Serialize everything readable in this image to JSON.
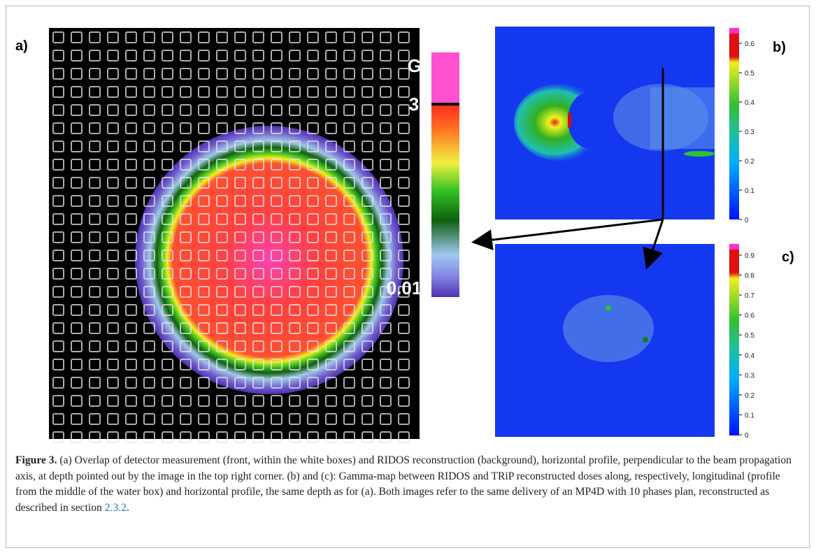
{
  "figure": {
    "panels": [
      {
        "label": "a)",
        "colorbar": {
          "unit": "Gy",
          "max_label": 3,
          "min_label": 0.01
        }
      },
      {
        "label": "b)",
        "colorbar_ticks": [
          0,
          0.1,
          0.2,
          0.3,
          0.4,
          0.5,
          0.6
        ]
      },
      {
        "label": "c)",
        "colorbar_ticks": [
          0,
          0.1,
          0.2,
          0.3,
          0.4,
          0.5,
          0.6,
          0.7,
          0.8,
          0.9
        ]
      }
    ],
    "caption": {
      "label": "Figure 3.",
      "text": " (a) Overlap of detector measurement (front, within the white boxes) and RIDOS reconstruction (background), horizontal profile, perpendicular to the beam propagation axis, at depth pointed out by the image in the top right corner. (b) and (c): Gamma-map between RIDOS and TRiP reconstructed doses along, respectively, longitudinal (profile from the middle of the water box) and horizontal profile, the same depth as for (a). Both images refer to the same delivery of an MP4D with 10 phases plan, reconstructed as described in section ",
      "link": "2.3.2",
      "end": "."
    }
  }
}
